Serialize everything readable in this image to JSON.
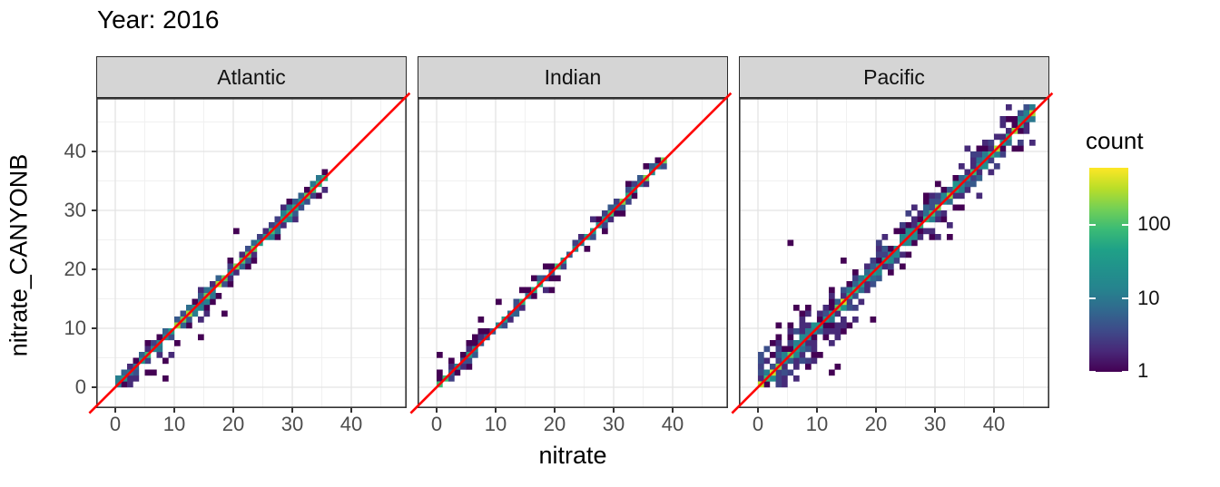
{
  "title": "Year: 2016",
  "axes": {
    "x_title": "nitrate",
    "y_title": "nitrate_CANYONB",
    "x_tick_labels": [
      "0",
      "10",
      "20",
      "30",
      "40"
    ],
    "y_tick_labels": [
      "0",
      "10",
      "20",
      "30",
      "40"
    ]
  },
  "legend": {
    "title": "count",
    "tick_labels": [
      "100",
      "10",
      "1"
    ]
  },
  "colors": {
    "reference_line": "#FF0000",
    "strip_background": "#D5D5D5",
    "panel_background": "#FFFFFF",
    "grid_major": "#E3E3E3",
    "grid_minor": "#F0F0F0",
    "panel_border": "#333333",
    "tick_text": "#4D4D4D",
    "viridis_stops": [
      "#440154",
      "#482878",
      "#3E4A89",
      "#31688E",
      "#26828E",
      "#21918C",
      "#1FA187",
      "#3BBB75",
      "#74D055",
      "#BADE28",
      "#FDE725"
    ]
  },
  "chart_data": {
    "type": "heatmap",
    "subtype": "2d-binned scatterplot (geom_bin2d) of predicted vs observed nitrate, faceted by ocean basin",
    "title": "Year: 2016",
    "xlabel": "nitrate",
    "ylabel": "nitrate_CANYONB",
    "x_ticks": [
      0,
      10,
      20,
      30,
      40
    ],
    "y_ticks": [
      0,
      10,
      20,
      30,
      40
    ],
    "xlim": [
      -3.3,
      49.4
    ],
    "ylim": [
      -3.5,
      49.1
    ],
    "grid": "major (0,10,20,30,40) and minor (5,15,25,35,45) light gray lines on white",
    "bin_width": 1,
    "reference_line": "identity line y = x, red, drawn over bins and extending slightly past panel corners",
    "color_scale": {
      "palette": "viridis",
      "title": "count",
      "transform": "log10",
      "legend_ticks": [
        1,
        10,
        100
      ],
      "max_count": 600
    },
    "facets": [
      {
        "label": "Atlantic",
        "data_range": [
          0,
          35
        ],
        "description": "tight diagonal band 0-35 along y=x; mostly counts 1-10 (dark purple) with teal/green core (50-150) near 0-2 and 10-25; sparse below-line scatter at x 5-16",
        "seed": 7,
        "core_log_base": 0.6,
        "core_log_range": 1.6,
        "boosts": [
          [
            0,
            1,
            3.0
          ],
          [
            10,
            25,
            1.8
          ]
        ],
        "spread_probs": [
          0.85,
          0.3
        ],
        "spread_log": [
          1.1,
          0.3
        ],
        "features": [
          {
            "x0": 5,
            "x1": 16,
            "dy0": -4,
            "dy1": -2,
            "prob": 0.2,
            "cmax": 2
          },
          {
            "x0": 10,
            "x1": 15,
            "dy0": 2,
            "dy1": 2,
            "prob": 0.15,
            "cmax": 1
          }
        ],
        "outliers": [
          [
            20,
            26
          ],
          [
            18,
            12
          ],
          [
            8,
            1
          ],
          [
            14,
            8
          ]
        ]
      },
      {
        "label": "Indian",
        "data_range": [
          0,
          38
        ],
        "description": "very tight diagonal band 0-38; green high-count core near 0-1 and 31-38; small above-line bulges near x 2-7 and 13-17",
        "seed": 13,
        "core_log_base": 0.5,
        "core_log_range": 1.5,
        "boosts": [
          [
            0,
            1,
            4.0
          ],
          [
            31,
            38,
            2.5
          ]
        ],
        "spread_probs": [
          0.6,
          0.12
        ],
        "spread_log": [
          0.8,
          0.3
        ],
        "features": [
          {
            "x0": 2,
            "x1": 7,
            "dy0": 2,
            "dy1": 3,
            "prob": 0.22,
            "cmax": 1
          },
          {
            "x0": 13,
            "x1": 17,
            "dy0": 2,
            "dy1": 2,
            "prob": 0.3,
            "cmax": 1
          }
        ],
        "outliers": [
          [
            19,
            16
          ],
          [
            10,
            14
          ],
          [
            7,
            11
          ],
          [
            0,
            5
          ]
        ]
      },
      {
        "label": "Pacific",
        "data_range": [
          0,
          46
        ],
        "description": "dense wide band 0-46; yellow (~500-600 counts) near origin, yellow-green near 40-43; broad scatter +/-4 around line, dense low-x blob, above-line cluster near x 19-26, below-line tail x 8-14, isolated outlier near (5,24)",
        "seed": 5,
        "core_log_base": 1.1,
        "core_log_range": 1.5,
        "boosts": [
          [
            0,
            1,
            2.5
          ],
          [
            40,
            43,
            1.5
          ]
        ],
        "spread_probs": [
          0.95,
          0.62,
          0.38,
          0.2,
          0.1
        ],
        "spread_log": [
          1.5,
          0.8,
          0.5,
          0.3,
          0.3
        ],
        "features": [
          {
            "x0": 0,
            "x1": 8,
            "dy0": -5,
            "dy1": 5,
            "prob": 0.3,
            "cmax": 4
          },
          {
            "x0": 19,
            "x1": 26,
            "dy0": 2,
            "dy1": 4,
            "prob": 0.35,
            "cmax": 3
          },
          {
            "x0": 8,
            "x1": 14,
            "dy0": -5,
            "dy1": -2,
            "prob": 0.25,
            "cmax": 2
          }
        ],
        "outliers": [
          [
            5,
            24
          ],
          [
            30,
            34
          ],
          [
            14,
            21
          ],
          [
            13,
            3
          ],
          [
            12,
            2
          ],
          [
            19,
            11
          ],
          [
            32,
            25
          ],
          [
            29,
            25
          ],
          [
            6,
            13
          ],
          [
            3,
            10
          ]
        ]
      }
    ]
  }
}
